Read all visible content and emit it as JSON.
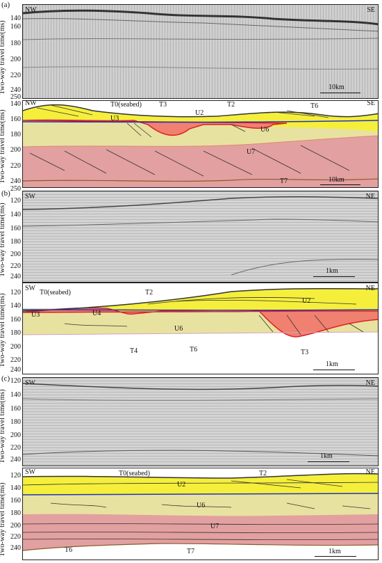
{
  "axis_label": "Two-way travel time(ms)",
  "panels": [
    {
      "id": "a",
      "letter": "(a)",
      "left": "NW",
      "right": "SE",
      "scale": "10km",
      "seis_ticks": [
        "140",
        "160",
        "180",
        "200",
        "220",
        "240"
      ],
      "interp_ticks": [
        "250",
        "140",
        "160",
        "180",
        "200",
        "220",
        "240"
      ],
      "labels": {
        "t0": "T0(seabed)",
        "t3": "T3",
        "u2": "U2",
        "t2": "T2",
        "t6": "T6",
        "u3": "U3",
        "u6": "U6",
        "u7": "U7",
        "t7": "T7"
      }
    },
    {
      "id": "b",
      "letter": "(b)",
      "left": "SW",
      "right": "NE",
      "scale": "1km",
      "seis_ticks": [
        "250",
        "120",
        "140",
        "160",
        "180",
        "200",
        "220",
        "240"
      ],
      "interp_ticks": [
        "120",
        "140",
        "160",
        "180",
        "200",
        "220",
        "240"
      ],
      "labels": {
        "t0": "T0(seabed)",
        "t2": "T2",
        "u2": "U2",
        "u3": "U3",
        "u4": "U4",
        "u6": "U6",
        "t4": "T4",
        "t6": "T6",
        "t3": "T3"
      }
    },
    {
      "id": "c",
      "letter": "(c)",
      "left": "SW",
      "right": "NE",
      "scale": "1km",
      "seis_ticks": [
        "120",
        "140",
        "160",
        "180",
        "200",
        "220",
        "240"
      ],
      "interp_ticks": [
        "120",
        "140",
        "160",
        "180",
        "200",
        "220",
        "240"
      ],
      "labels": {
        "t0": "T0(seabed)",
        "t2": "T2",
        "u2": "U2",
        "u6": "U6",
        "u7": "U7",
        "t6": "T6",
        "t7": "T7"
      }
    }
  ],
  "colors": {
    "yellow": "#f5ef3c",
    "beige": "#e8e2a0",
    "salmon": "#f08070",
    "pink": "#e3a0a0",
    "blue": "#2233bb",
    "red": "#dd2222",
    "seismic_bg": "#d9d9d9"
  }
}
